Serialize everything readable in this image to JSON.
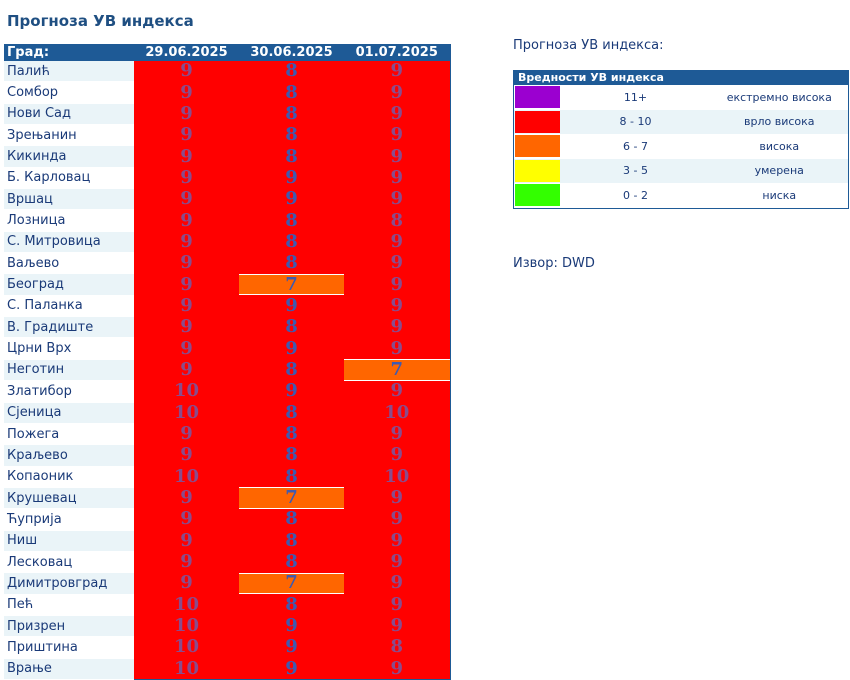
{
  "title": "Прогноза УВ индекса",
  "table": {
    "headers": [
      "Град:",
      "29.06.2025",
      "30.06.2025",
      "01.07.2025"
    ],
    "rows": [
      {
        "city": "Палић",
        "values": [
          "9",
          "8",
          "9"
        ]
      },
      {
        "city": "Сомбор",
        "values": [
          "9",
          "8",
          "9"
        ]
      },
      {
        "city": "Нови Сад",
        "values": [
          "9",
          "8",
          "9"
        ]
      },
      {
        "city": "Зрењанин",
        "values": [
          "9",
          "8",
          "9"
        ]
      },
      {
        "city": "Кикинда",
        "values": [
          "9",
          "8",
          "9"
        ]
      },
      {
        "city": "Б. Карловац",
        "values": [
          "9",
          "9",
          "9"
        ]
      },
      {
        "city": "Вршац",
        "values": [
          "9",
          "9",
          "9"
        ]
      },
      {
        "city": "Лозница",
        "values": [
          "9",
          "8",
          "8"
        ]
      },
      {
        "city": "С. Митровица",
        "values": [
          "9",
          "8",
          "9"
        ]
      },
      {
        "city": "Ваљево",
        "values": [
          "9",
          "8",
          "9"
        ]
      },
      {
        "city": "Београд",
        "values": [
          "9",
          "7",
          "9"
        ]
      },
      {
        "city": "С. Паланка",
        "values": [
          "9",
          "9",
          "9"
        ]
      },
      {
        "city": "В. Градиште",
        "values": [
          "9",
          "8",
          "9"
        ]
      },
      {
        "city": "Црни Врх",
        "values": [
          "9",
          "9",
          "9"
        ]
      },
      {
        "city": "Неготин",
        "values": [
          "9",
          "8",
          "7"
        ]
      },
      {
        "city": "Златибор",
        "values": [
          "10",
          "9",
          "9"
        ]
      },
      {
        "city": "Сјеница",
        "values": [
          "10",
          "8",
          "10"
        ]
      },
      {
        "city": "Пожега",
        "values": [
          "9",
          "8",
          "9"
        ]
      },
      {
        "city": "Краљево",
        "values": [
          "9",
          "8",
          "9"
        ]
      },
      {
        "city": "Копаоник",
        "values": [
          "10",
          "8",
          "10"
        ]
      },
      {
        "city": "Крушевац",
        "values": [
          "9",
          "7",
          "9"
        ]
      },
      {
        "city": "Ћуприја",
        "values": [
          "9",
          "8",
          "9"
        ]
      },
      {
        "city": "Ниш",
        "values": [
          "9",
          "8",
          "9"
        ]
      },
      {
        "city": "Лесковац",
        "values": [
          "9",
          "8",
          "9"
        ]
      },
      {
        "city": "Димитровград",
        "values": [
          "9",
          "7",
          "9"
        ]
      },
      {
        "city": "Пећ",
        "values": [
          "10",
          "8",
          "9"
        ]
      },
      {
        "city": "Призрен",
        "values": [
          "10",
          "9",
          "9"
        ]
      },
      {
        "city": "Приштина",
        "values": [
          "10",
          "9",
          "8"
        ]
      },
      {
        "city": "Врање",
        "values": [
          "10",
          "9",
          "9"
        ]
      }
    ]
  },
  "side_title": "Прогноза УВ индекса:",
  "legend": {
    "header": "Вредности УВ индекса",
    "rows": [
      {
        "color": "#9b00d0",
        "range": "11+",
        "label": "екстремно висока"
      },
      {
        "color": "#ff0000",
        "range": "8 - 10",
        "label": "врло висока"
      },
      {
        "color": "#ff6600",
        "range": "6 - 7",
        "label": "висока"
      },
      {
        "color": "#ffff00",
        "range": "3 - 5",
        "label": "умерена"
      },
      {
        "color": "#33ff00",
        "range": "0 - 2",
        "label": "ниска"
      }
    ]
  },
  "source": "Извор: DWD"
}
